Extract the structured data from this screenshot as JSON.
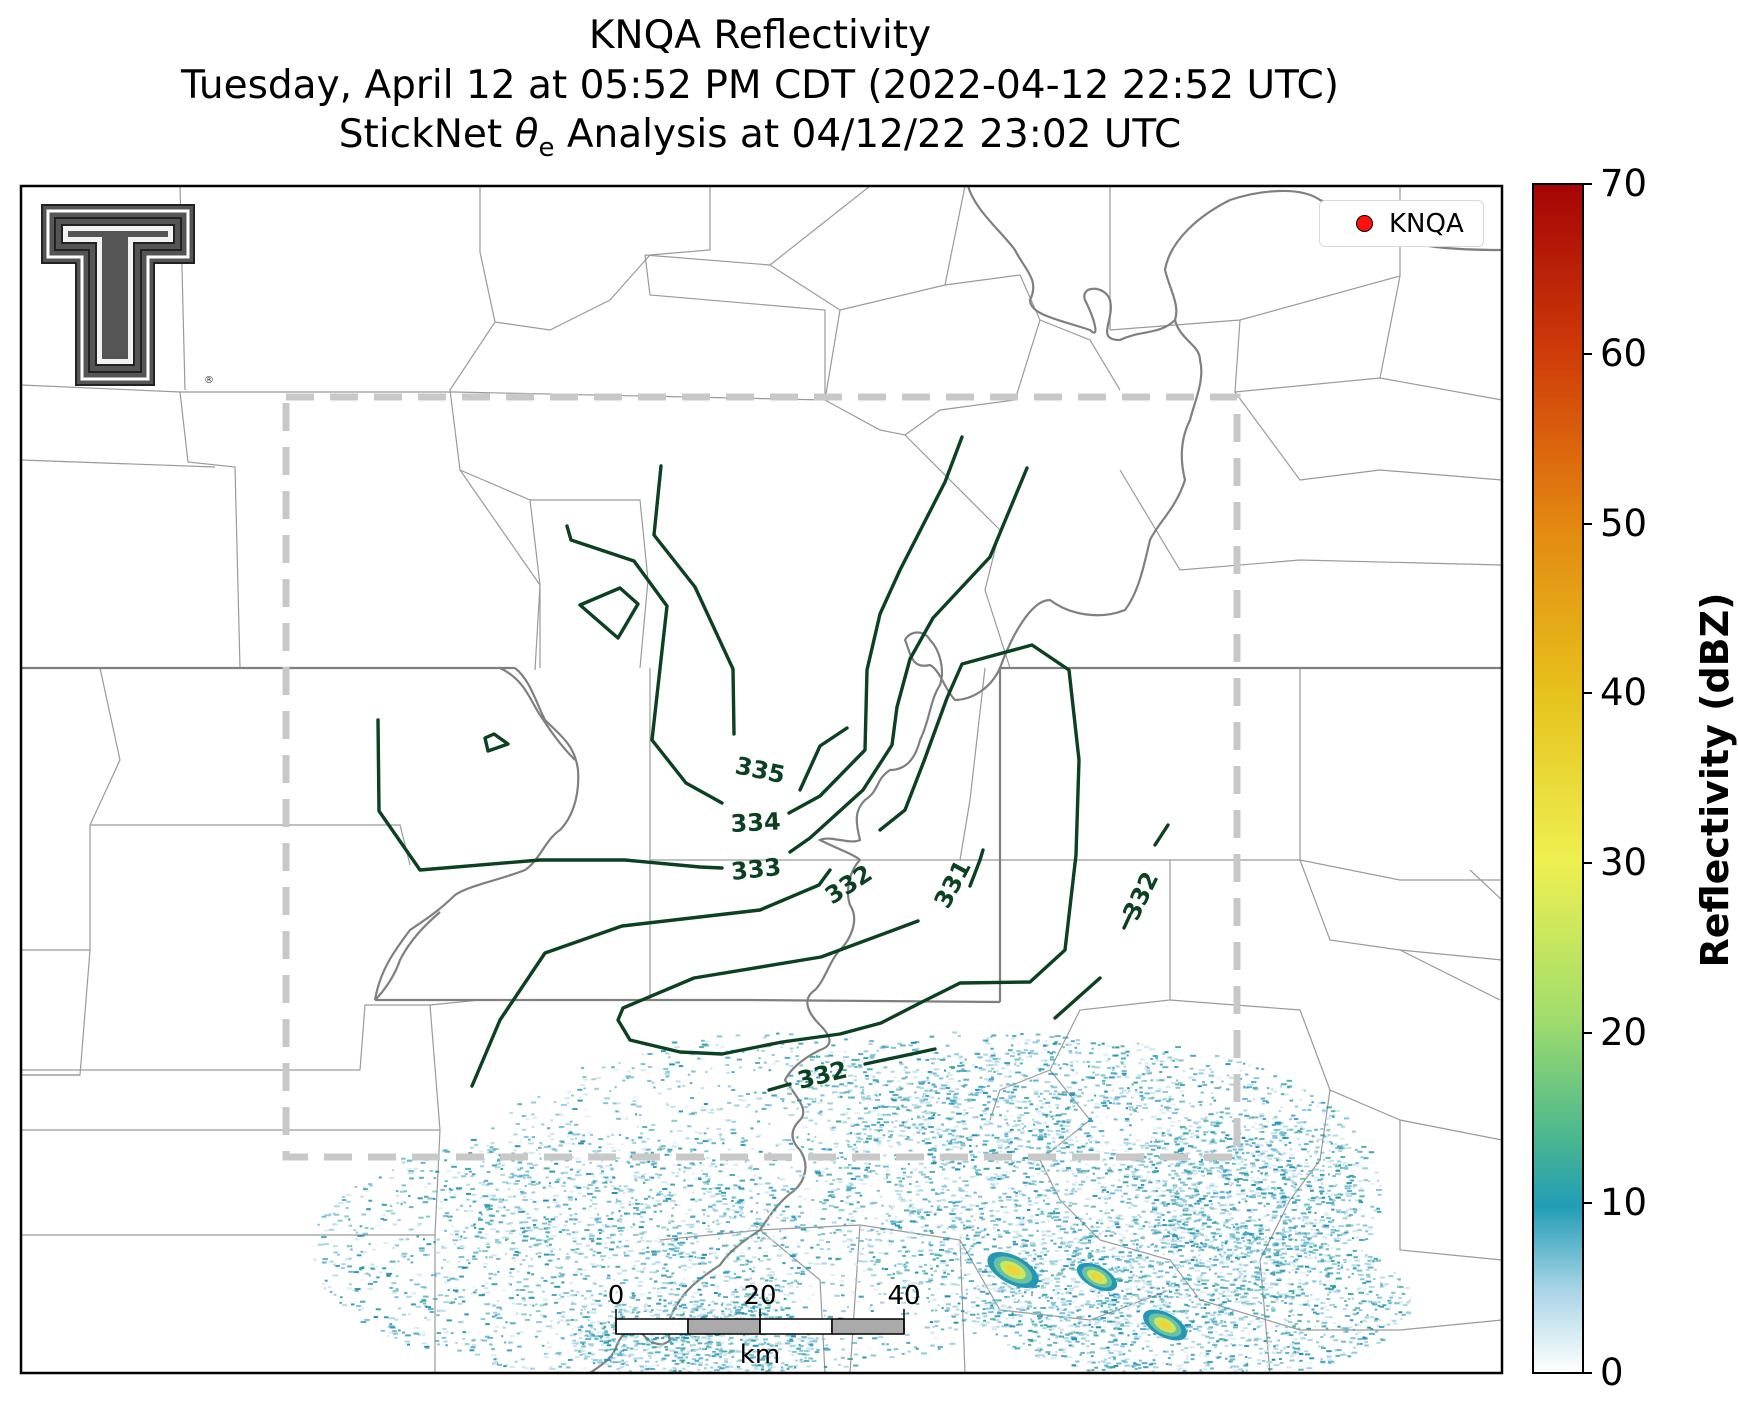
{
  "title": {
    "line1": "KNQA Reflectivity",
    "line2": "Tuesday, April 12 at 05:52 PM CDT (2022-04-12 22:52 UTC)",
    "line3_prefix": "StickNet ",
    "line3_symbol": "θ",
    "line3_subscript": "e",
    "line3_suffix": " Analysis at 04/12/22 23:02 UTC"
  },
  "legend": {
    "label": "KNQA",
    "marker_color": "#ff1010"
  },
  "logo": {
    "letter": "T",
    "registered": "®"
  },
  "colorbar": {
    "label": "Reflectivity (dBZ)",
    "ticks": [
      "0",
      "10",
      "20",
      "30",
      "40",
      "50",
      "60",
      "70"
    ],
    "range": [
      0,
      70
    ]
  },
  "contour_labels": {
    "c335": "335",
    "c334": "334",
    "c333": "333",
    "c332a": "332",
    "c331": "331",
    "c332b": "332",
    "c332c": "332"
  },
  "scale_bar": {
    "ticks": [
      "0",
      "20",
      "40"
    ],
    "unit": "km"
  },
  "colors": {
    "contour": "#0b4020",
    "domain_box": "#c8c8c8",
    "state_line": "#808080",
    "county_line": "#9a9a9a"
  }
}
